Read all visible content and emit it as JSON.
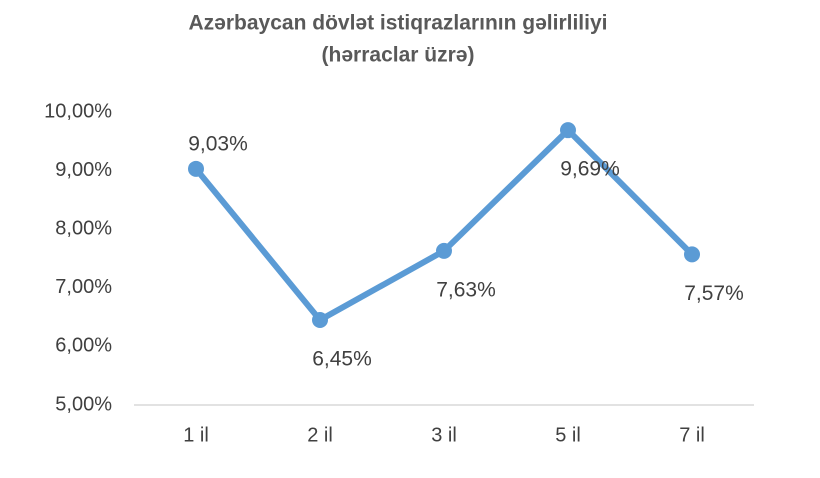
{
  "chart_data": {
    "type": "line",
    "title": "Azərbaycan dövlət istiqrazlarının gəlirliliyi",
    "subtitle": "(hərraclar üzrə)",
    "categories": [
      "1 il",
      "2 il",
      "3 il",
      "5 il",
      "7 il"
    ],
    "series": [
      {
        "color": "#5b9bd5",
        "values": [
          9.03,
          6.45,
          7.63,
          9.69,
          7.57
        ],
        "value_labels": [
          "9,03%",
          "6,45%",
          "7,63%",
          "9,69%",
          "7,57%"
        ]
      }
    ],
    "ylim": [
      5,
      10
    ],
    "yticks": [
      {
        "value": 5,
        "label": "5,00%"
      },
      {
        "value": 6,
        "label": "6,00%"
      },
      {
        "value": 7,
        "label": "7,00%"
      },
      {
        "value": 8,
        "label": "8,00%"
      },
      {
        "value": 9,
        "label": "9,00%"
      },
      {
        "value": 10,
        "label": "10,00%"
      }
    ],
    "grid": false
  }
}
